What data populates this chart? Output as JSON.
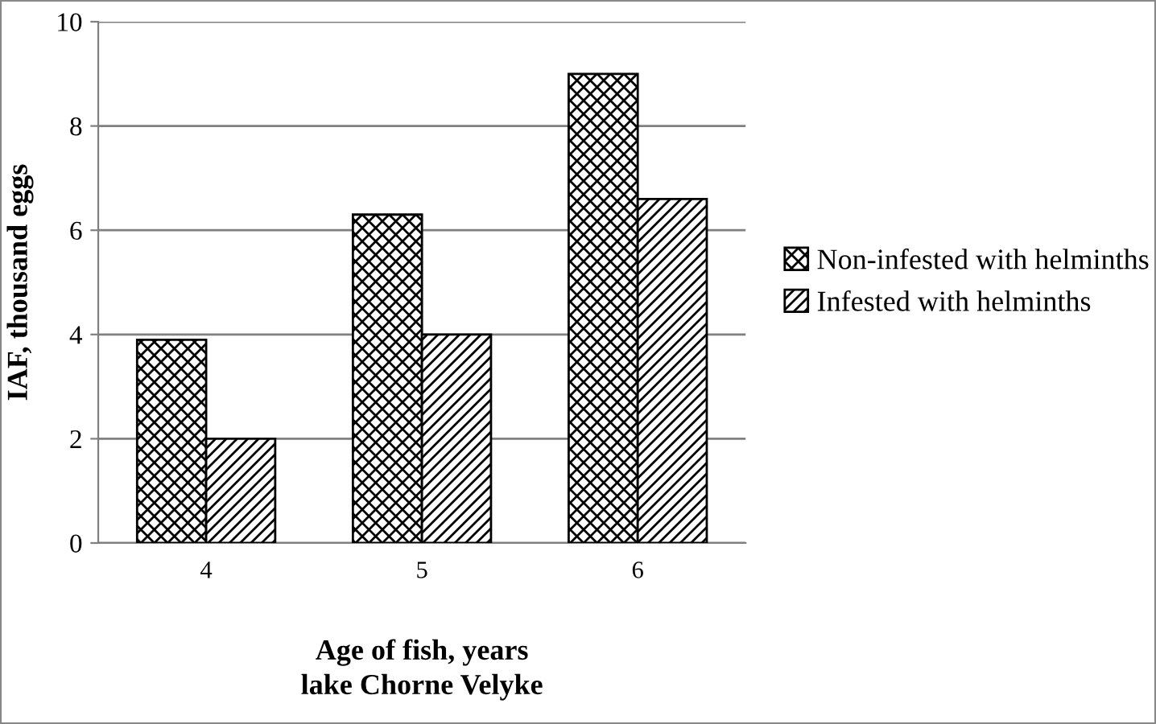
{
  "chart_data": {
    "type": "bar",
    "xlabel": "Age of fish, years\nlake Chorne Velyke",
    "ylabel": "IAF, thousand eggs",
    "categories": [
      "4",
      "5",
      "6"
    ],
    "series": [
      {
        "name": "Non-infested with helminths",
        "color": "#000000",
        "values": [
          3.9,
          6.3,
          9.0
        ]
      },
      {
        "name": "Infested with helminths",
        "color": "#000000",
        "values": [
          2.0,
          4.0,
          6.6
        ]
      }
    ],
    "ylim": [
      0,
      10
    ],
    "yticks": [
      0,
      2,
      4,
      6,
      8,
      10
    ],
    "grid": "y",
    "legend": "right"
  }
}
